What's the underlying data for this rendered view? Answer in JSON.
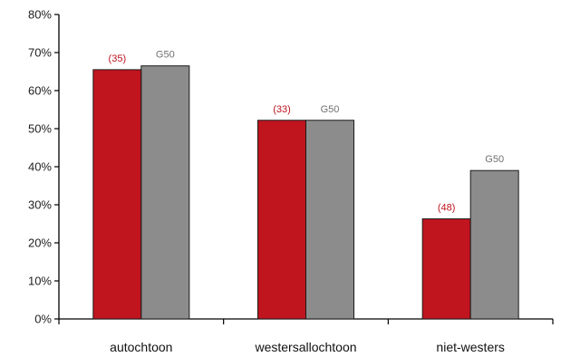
{
  "chart_data": {
    "type": "bar",
    "title": "",
    "xlabel": "",
    "ylabel": "",
    "ylim": [
      0,
      80
    ],
    "y_ticks": [
      "0%",
      "10%",
      "20%",
      "30%",
      "40%",
      "50%",
      "60%",
      "70%",
      "80%"
    ],
    "grid": false,
    "legend": "none",
    "categories": [
      "autochtoon",
      "westersallochtoon",
      "niet-westers"
    ],
    "series": [
      {
        "color": "#c0141e",
        "values": [
          65.5,
          52.2,
          26.3
        ],
        "labels": [
          "(35)",
          "(33)",
          "(48)"
        ],
        "label_color": "#c0141e"
      },
      {
        "color": "#8c8c8c",
        "values": [
          66.5,
          52.2,
          39.0
        ],
        "labels": [
          "G50",
          "G50",
          "G50"
        ],
        "label_color": "#707070"
      }
    ]
  }
}
